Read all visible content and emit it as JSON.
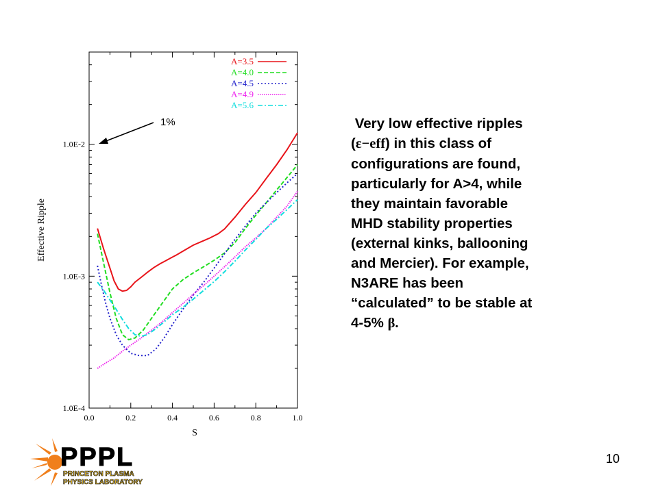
{
  "chart_data": {
    "type": "line",
    "ylabel": "Effective Ripple",
    "xlabel": "S",
    "y_scale": "log",
    "xlim": [
      0.0,
      1.0
    ],
    "ylim": [
      0.0001,
      0.05
    ],
    "x_ticks": [
      "0.0",
      "0.2",
      "0.4",
      "0.6",
      "0.8",
      "1.0"
    ],
    "y_ticks": [
      "1.0E-4",
      "1.0E-3",
      "1.0E-2"
    ],
    "legend_position": "top-right",
    "annotation": "1%",
    "series": [
      {
        "name": "A=3.5",
        "color": "#e8141a",
        "dash": "solid",
        "x": [
          0.04,
          0.07,
          0.1,
          0.12,
          0.14,
          0.16,
          0.18,
          0.2,
          0.22,
          0.25,
          0.28,
          0.31,
          0.34,
          0.38,
          0.42,
          0.46,
          0.5,
          0.55,
          0.58,
          0.62,
          0.65,
          0.7,
          0.75,
          0.8,
          0.85,
          0.9,
          0.95,
          1.0
        ],
        "y": [
          0.0023,
          0.0016,
          0.00115,
          0.00092,
          0.0008,
          0.00077,
          0.00078,
          0.00083,
          0.0009,
          0.00098,
          0.00107,
          0.00116,
          0.00124,
          0.00134,
          0.00145,
          0.00158,
          0.00172,
          0.00186,
          0.00195,
          0.0021,
          0.00228,
          0.0028,
          0.0035,
          0.0043,
          0.0055,
          0.007,
          0.0091,
          0.0122
        ]
      },
      {
        "name": "A=4.0",
        "color": "#22dd22",
        "dash": "dashed",
        "x": [
          0.04,
          0.07,
          0.1,
          0.13,
          0.16,
          0.19,
          0.22,
          0.26,
          0.3,
          0.35,
          0.4,
          0.45,
          0.5,
          0.55,
          0.6,
          0.65,
          0.7,
          0.75,
          0.8,
          0.85,
          0.9,
          0.95,
          1.0
        ],
        "y": [
          0.0021,
          0.00125,
          0.00075,
          0.00048,
          0.00036,
          0.00033,
          0.00034,
          0.00039,
          0.00048,
          0.00062,
          0.0008,
          0.00094,
          0.00106,
          0.00118,
          0.00132,
          0.0015,
          0.0018,
          0.0023,
          0.0029,
          0.0036,
          0.0045,
          0.0056,
          0.007
        ]
      },
      {
        "name": "A=4.5",
        "color": "#2222cc",
        "dash": "dotted",
        "x": [
          0.04,
          0.06,
          0.08,
          0.1,
          0.13,
          0.16,
          0.2,
          0.24,
          0.28,
          0.32,
          0.36,
          0.4,
          0.45,
          0.5,
          0.55,
          0.6,
          0.65,
          0.7,
          0.75,
          0.8,
          0.85,
          0.9,
          0.95,
          1.0
        ],
        "y": [
          0.0012,
          0.00085,
          0.00062,
          0.00048,
          0.00036,
          0.0003,
          0.00026,
          0.00025,
          0.00025,
          0.00028,
          0.00034,
          0.00043,
          0.00056,
          0.00072,
          0.0009,
          0.00115,
          0.00148,
          0.0019,
          0.0024,
          0.003,
          0.0036,
          0.0043,
          0.0051,
          0.006
        ]
      },
      {
        "name": "A=4.9",
        "color": "#ee22ee",
        "dash": "dense-dotted",
        "x": [
          0.04,
          0.08,
          0.12,
          0.16,
          0.2,
          0.25,
          0.3,
          0.35,
          0.4,
          0.45,
          0.5,
          0.55,
          0.6,
          0.65,
          0.7,
          0.75,
          0.8,
          0.85,
          0.9,
          0.95,
          1.0
        ],
        "y": [
          0.0002,
          0.00022,
          0.00024,
          0.00027,
          0.0003,
          0.00034,
          0.00039,
          0.00045,
          0.00053,
          0.00062,
          0.00073,
          0.00085,
          0.001,
          0.00118,
          0.0014,
          0.00167,
          0.00195,
          0.0023,
          0.0028,
          0.0034,
          0.0044
        ]
      },
      {
        "name": "A=5.6",
        "color": "#11dddd",
        "dash": "dash-dot",
        "x": [
          0.04,
          0.07,
          0.1,
          0.13,
          0.16,
          0.19,
          0.22,
          0.25,
          0.28,
          0.32,
          0.36,
          0.4,
          0.45,
          0.5,
          0.55,
          0.6,
          0.65,
          0.7,
          0.75,
          0.8,
          0.85,
          0.9,
          0.95,
          1.0
        ],
        "y": [
          0.0009,
          0.00078,
          0.00066,
          0.00056,
          0.00047,
          0.0004,
          0.00036,
          0.00035,
          0.00036,
          0.0004,
          0.00045,
          0.00051,
          0.00058,
          0.00067,
          0.00078,
          0.00091,
          0.00108,
          0.0013,
          0.00158,
          0.0019,
          0.0023,
          0.0027,
          0.0032,
          0.0038
        ]
      }
    ]
  },
  "description": {
    "line1": "Very low effective ripples",
    "line2_open": "(",
    "line2_symbol": "ε−eff",
    "line2_rest": ") in this class of",
    "line3": "configurations are found,",
    "line4": "particularly for A>4, while",
    "line5": "they maintain favorable",
    "line6": "MHD stability properties",
    "line7": "(external kinks, ballooning",
    "line8": "and Mercier).  For example,",
    "line9": "N3ARE has been",
    "line10": "“calculated” to be stable at",
    "line11_text": "4-5% ",
    "line11_symbol": "β."
  },
  "page_number": "10",
  "logo": {
    "big_text": "PPPL",
    "line1": "PRINCETON PLASMA",
    "line2": "PHYSICS LABORATORY",
    "colors": {
      "orange": "#f07f1c",
      "black": "#000000",
      "yellow": "#f7c934"
    }
  }
}
